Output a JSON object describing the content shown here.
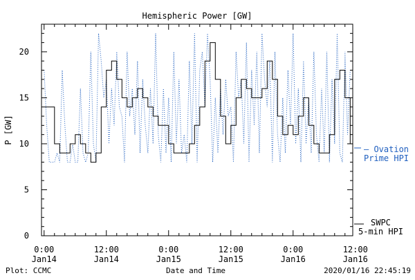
{
  "chart_data": {
    "type": "line",
    "title": "Hemispheric Power [GW]",
    "ylabel": "P [GW]",
    "xlabel": "Date and Time",
    "ylim": [
      0,
      23
    ],
    "xlim_hours": [
      -0.5,
      59.5
    ],
    "y_ticks": [
      0,
      5,
      10,
      15,
      20
    ],
    "x_ticks": [
      {
        "hour": 0,
        "time": "0:00",
        "date": "Jan14"
      },
      {
        "hour": 12,
        "time": "12:00",
        "date": "Jan14"
      },
      {
        "hour": 24,
        "time": "0:00",
        "date": "Jan15"
      },
      {
        "hour": 36,
        "time": "12:00",
        "date": "Jan15"
      },
      {
        "hour": 48,
        "time": "0:00",
        "date": "Jan16"
      },
      {
        "hour": 60,
        "time": "12:00",
        "date": "Jan16"
      }
    ],
    "grid": false,
    "series": [
      {
        "name": "SWPC 5-min HPI",
        "legend_lines": [
          "SWPC",
          "5-min HPI"
        ],
        "color": "#000000",
        "style": "step",
        "x_hours": [
          0,
          1,
          2,
          3,
          4,
          5,
          6,
          7,
          8,
          9,
          10,
          11,
          12,
          13,
          14,
          15,
          16,
          17,
          18,
          19,
          20,
          21,
          22,
          23,
          24,
          25,
          26,
          27,
          28,
          29,
          30,
          31,
          32,
          33,
          34,
          35,
          36,
          37,
          38,
          39,
          40,
          41,
          42,
          43,
          44,
          45,
          46,
          47,
          48,
          49,
          50,
          51,
          52,
          53,
          54,
          55,
          56,
          57,
          58,
          59
        ],
        "values": [
          14,
          14,
          10,
          9,
          9,
          10,
          11,
          10,
          9,
          8,
          9,
          14,
          18,
          19,
          17,
          15,
          14,
          15,
          16,
          15,
          14,
          13,
          12,
          12,
          10,
          9,
          9,
          9,
          10,
          12,
          14,
          19,
          21,
          17,
          13,
          10,
          12,
          15,
          17,
          16,
          15,
          15,
          16,
          19,
          17,
          13,
          11,
          12,
          11,
          13,
          15,
          12,
          10,
          9,
          9,
          11,
          17,
          18,
          15,
          10
        ]
      },
      {
        "name": "Ovation Prime HPI",
        "legend_lines": [
          "— Ovation",
          "Prime HPI"
        ],
        "color": "#1f5fbf",
        "style": "dotted",
        "x_hours": [
          0,
          0.5,
          1,
          1.5,
          2,
          2.5,
          3,
          3.5,
          4,
          4.5,
          5,
          5.5,
          6,
          6.5,
          7,
          7.5,
          8,
          8.5,
          9,
          9.5,
          10,
          10.5,
          11,
          11.5,
          12,
          12.5,
          13,
          13.5,
          14,
          14.5,
          15,
          15.5,
          16,
          16.5,
          17,
          17.5,
          18,
          18.5,
          19,
          19.5,
          20,
          20.5,
          21,
          21.5,
          22,
          22.5,
          23,
          23.5,
          24,
          24.5,
          25,
          25.5,
          26,
          26.5,
          27,
          27.5,
          28,
          28.5,
          29,
          29.5,
          30,
          30.5,
          31,
          31.5,
          32,
          32.5,
          33,
          33.5,
          34,
          34.5,
          35,
          35.5,
          36,
          36.5,
          37,
          37.5,
          38,
          38.5,
          39,
          39.5,
          40,
          40.5,
          41,
          41.5,
          42,
          42.5,
          43,
          43.5,
          44,
          44.5,
          45,
          45.5,
          46,
          46.5,
          47,
          47.5,
          48,
          48.5,
          49,
          49.5,
          50,
          50.5,
          51,
          51.5,
          52,
          52.5,
          53,
          53.5,
          54,
          54.5,
          55,
          55.5,
          56,
          56.5,
          57,
          57.5,
          58,
          58.5,
          59
        ],
        "values": [
          18,
          12,
          8,
          8,
          8,
          9,
          8,
          18,
          12,
          8,
          8,
          10,
          8,
          8,
          16,
          9,
          8,
          9,
          20,
          10,
          8,
          22,
          19,
          15,
          17,
          10,
          16,
          12,
          20,
          14,
          13,
          8,
          20,
          13,
          16,
          11,
          19,
          9,
          17,
          12,
          9,
          16,
          10,
          22,
          11,
          8,
          16,
          9,
          15,
          8,
          20,
          10,
          17,
          9,
          11,
          8,
          19,
          10,
          22,
          8,
          18,
          20,
          14,
          22,
          17,
          8,
          15,
          9,
          16,
          11,
          17,
          13,
          14,
          8,
          20,
          15,
          17,
          10,
          21,
          8,
          18,
          12,
          20,
          9,
          22,
          17,
          14,
          19,
          8,
          20,
          11,
          8,
          15,
          9,
          18,
          12,
          22,
          10,
          16,
          8,
          19,
          10,
          15,
          9,
          20,
          11,
          8,
          16,
          9,
          20,
          8,
          17,
          10,
          22,
          9,
          8,
          20,
          11,
          18
        ]
      }
    ],
    "footer": {
      "left": "Plot: CCMC",
      "right": "2020/01/16 22:45:19"
    }
  }
}
